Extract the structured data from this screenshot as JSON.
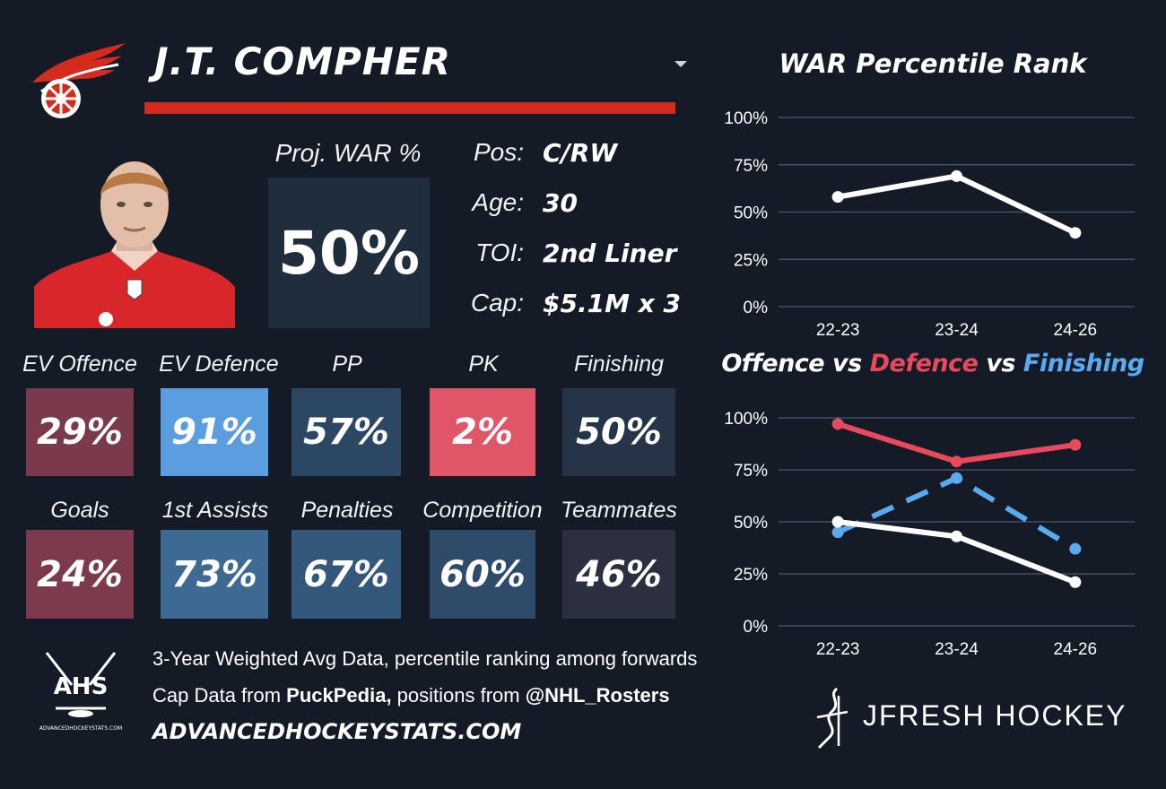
{
  "player": {
    "name": "J.T. COMPHER",
    "proj_war_label": "Proj. WAR %",
    "proj_war_value": "50%",
    "info": [
      {
        "label": "Pos:",
        "value": "C/RW"
      },
      {
        "label": "Age:",
        "value": "30"
      },
      {
        "label": "TOI:",
        "value": "2nd Liner"
      },
      {
        "label": "Cap:",
        "value": "$5.1M x 3"
      }
    ]
  },
  "team": {
    "logo_icon": "red-wings-winged-wheel-icon",
    "primary_color": "#d52b1e"
  },
  "stats_row1": [
    {
      "label": "EV Offence",
      "value": "29%",
      "color": "#7a3a4c"
    },
    {
      "label": "EV Defence",
      "value": "91%",
      "color": "#5b9ee0"
    },
    {
      "label": "PP",
      "value": "57%",
      "color": "#2c4763"
    },
    {
      "label": "PK",
      "value": "2%",
      "color": "#e05668"
    },
    {
      "label": "Finishing",
      "value": "50%",
      "color": "#253446"
    }
  ],
  "stats_row2": [
    {
      "label": "Goals",
      "value": "24%",
      "color": "#7d3a4d"
    },
    {
      "label": "1st Assists",
      "value": "73%",
      "color": "#3d6a92"
    },
    {
      "label": "Penalties",
      "value": "67%",
      "color": "#34587c"
    },
    {
      "label": "Competition",
      "value": "60%",
      "color": "#2e4c6a"
    },
    {
      "label": "Teammates",
      "value": "46%",
      "color": "#2c2f3f"
    }
  ],
  "footer": {
    "line1": "3-Year Weighted Avg Data, percentile ranking among forwards",
    "line2_pre": "Cap Data from ",
    "line2_bold1": "PuckPedia,",
    "line2_mid": " positions from ",
    "line2_bold2": "@NHL_Rosters",
    "url": "ADVANCEDHOCKEYSTATS.COM",
    "ahs_logo_text": "AHS",
    "ahs_logo_subtext": "ADVANCEDHOCKEYSTATS.COM",
    "brand": "JFRESH HOCKEY"
  },
  "chart_data": [
    {
      "type": "line",
      "title": "WAR Percentile Rank",
      "categories": [
        "22-23",
        "23-24",
        "24-26"
      ],
      "yticks": [
        "100%",
        "75%",
        "50%",
        "25%",
        "0%"
      ],
      "ylim": [
        0,
        100
      ],
      "grid": true,
      "series": [
        {
          "values": [
            58,
            69,
            39
          ],
          "color": "#ffffff",
          "dash": false
        }
      ]
    },
    {
      "type": "line",
      "title_parts": [
        {
          "text": "Offence",
          "color": "#ffffff"
        },
        {
          "text": " vs ",
          "color": "#ffffff"
        },
        {
          "text": "Defence",
          "color": "#e8495c"
        },
        {
          "text": " vs ",
          "color": "#ffffff"
        },
        {
          "text": "Finishing",
          "color": "#5aaaf0"
        }
      ],
      "categories": [
        "22-23",
        "23-24",
        "24-26"
      ],
      "yticks": [
        "100%",
        "75%",
        "50%",
        "25%",
        "0%"
      ],
      "ylim": [
        0,
        100
      ],
      "grid": true,
      "series": [
        {
          "name": "Defence",
          "values": [
            97,
            79,
            87
          ],
          "color": "#e8495c",
          "dash": false
        },
        {
          "name": "Finishing",
          "values": [
            45,
            71,
            37
          ],
          "color": "#5aaaf0",
          "dash": true
        },
        {
          "name": "Offence",
          "values": [
            50,
            43,
            21
          ],
          "color": "#ffffff",
          "dash": false
        }
      ]
    }
  ]
}
